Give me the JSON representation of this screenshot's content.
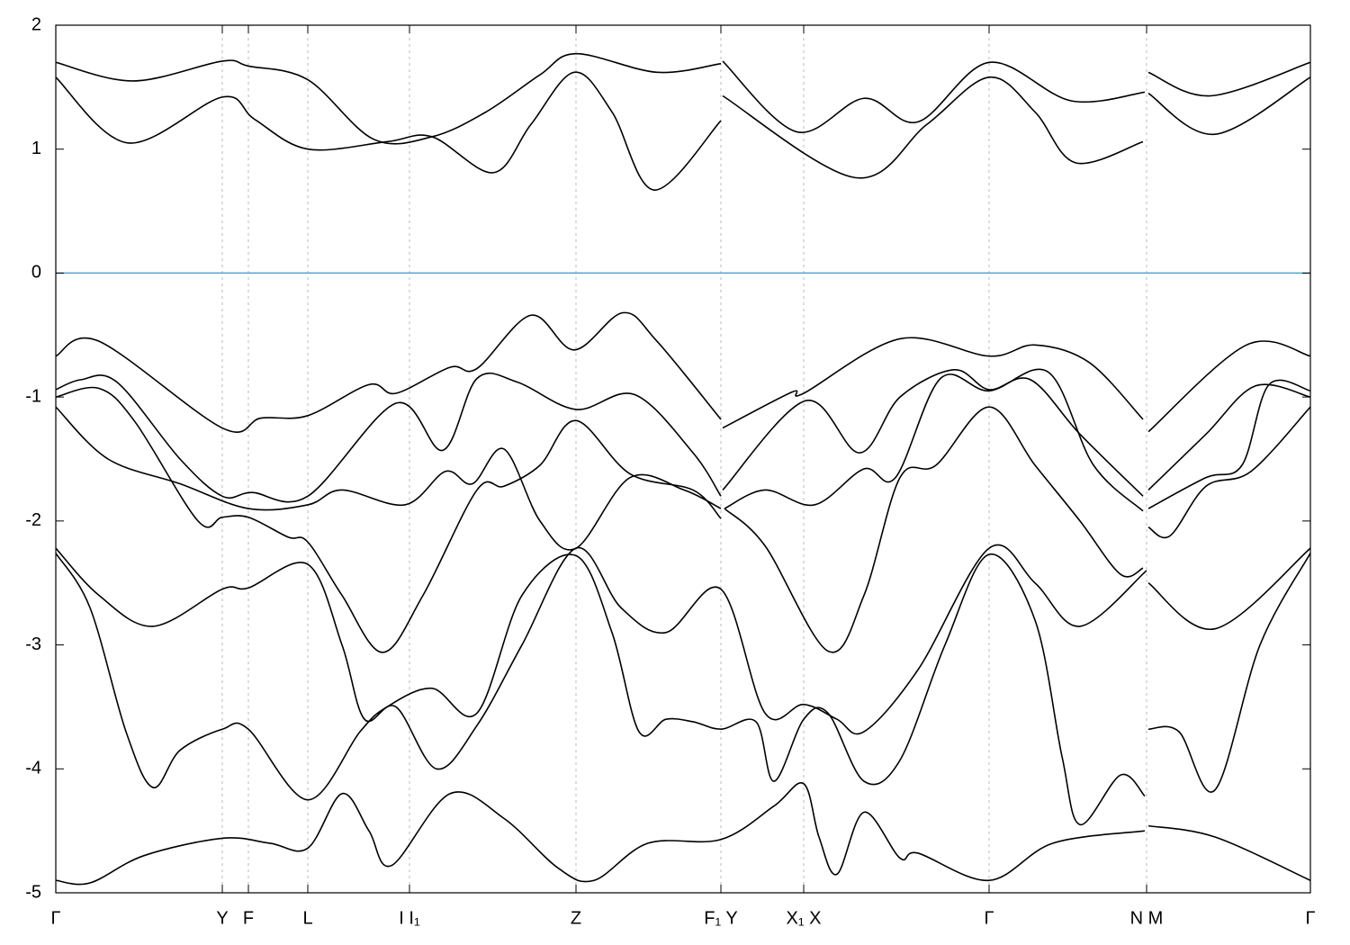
{
  "chart_data": {
    "type": "line",
    "xlim": [
      0,
      1.394
    ],
    "ylim": [
      -5,
      2
    ],
    "yticks": [
      -5,
      -4,
      -3,
      -2,
      -1,
      0,
      1,
      2
    ],
    "xticks": [
      {
        "value": 0,
        "label": "Γ"
      },
      {
        "value": 0.185,
        "label": "Y"
      },
      {
        "value": 0.214,
        "label": "F"
      },
      {
        "value": 0.28,
        "label": "L"
      },
      {
        "value": 0.393,
        "label": "I I₁"
      },
      {
        "value": 0.578,
        "label": "Z"
      },
      {
        "value": 0.739,
        "label": "F₁ Y"
      },
      {
        "value": 0.831,
        "label": "X₁ X"
      },
      {
        "value": 1.037,
        "label": "Γ"
      },
      {
        "value": 1.212,
        "label": "N M"
      },
      {
        "value": 1.394,
        "label": "Γ"
      }
    ],
    "grid": true,
    "hline": {
      "value": 0,
      "color": "#4ea9c4"
    },
    "series": [
      {
        "color": "#000000",
        "x": [
          0,
          0.086,
          0.185,
          0.214,
          0.28,
          0.353,
          0.418,
          0.478,
          0.538,
          0.578,
          0.668,
          0.739,
          0.74,
          0.741,
          0.823,
          0.898,
          0.958,
          1.037,
          1.128,
          1.21,
          1.212,
          1.214,
          1.283,
          1.394
        ],
        "values": [
          1.7,
          1.55,
          1.71,
          1.67,
          1.56,
          1.08,
          1.1,
          1.3,
          1.6,
          1.77,
          1.62,
          1.69,
          null,
          1.71,
          1.14,
          1.41,
          1.22,
          1.7,
          1.39,
          1.46,
          null,
          1.62,
          1.43,
          1.7
        ]
      },
      {
        "color": "#000000",
        "x": [
          0,
          0.08,
          0.185,
          0.221,
          0.28,
          0.368,
          0.418,
          0.486,
          0.528,
          0.576,
          0.618,
          0.665,
          0.739,
          0.74,
          0.741,
          0.888,
          0.968,
          1.037,
          1.088,
          1.133,
          1.208,
          1.212,
          1.214,
          1.288,
          1.394
        ],
        "values": [
          1.58,
          1.05,
          1.42,
          1.24,
          1.0,
          1.06,
          1.1,
          0.81,
          1.2,
          1.62,
          1.3,
          0.67,
          1.23,
          null,
          1.43,
          0.77,
          1.2,
          1.58,
          1.3,
          0.89,
          1.06,
          null,
          1.45,
          1.12,
          1.58
        ]
      },
      {
        "color": "#000000",
        "x": [
          0,
          0.048,
          0.185,
          0.228,
          0.28,
          0.348,
          0.378,
          0.438,
          0.468,
          0.528,
          0.576,
          0.63,
          0.668,
          0.739,
          0.74,
          0.741,
          0.818,
          0.831,
          0.938,
          1.037,
          1.088,
          1.148,
          1.208,
          1.212,
          1.214,
          1.323,
          1.394
        ],
        "values": [
          -0.67,
          -0.55,
          -1.25,
          -1.17,
          -1.15,
          -0.9,
          -0.97,
          -0.76,
          -0.77,
          -0.34,
          -0.62,
          -0.32,
          -0.55,
          -1.18,
          null,
          -1.25,
          -0.96,
          -0.97,
          -0.53,
          -0.67,
          -0.58,
          -0.72,
          -1.18,
          null,
          -1.28,
          -0.58,
          -0.67
        ]
      },
      {
        "color": "#000000",
        "x": [
          0,
          0.028,
          0.068,
          0.138,
          0.185,
          0.218,
          0.28,
          0.378,
          0.43,
          0.468,
          0.513,
          0.578,
          0.643,
          0.708,
          0.739,
          0.74,
          0.741,
          0.833,
          0.893,
          0.938,
          0.998,
          1.037,
          1.083,
          1.138,
          1.208,
          1.212,
          1.214,
          1.278,
          1.333,
          1.394
        ],
        "values": [
          -0.94,
          -0.86,
          -0.88,
          -1.5,
          -1.8,
          -1.77,
          -1.8,
          -1.05,
          -1.43,
          -0.85,
          -0.88,
          -1.1,
          -0.98,
          -1.45,
          -1.8,
          null,
          -1.75,
          -1.03,
          -1.45,
          -1.0,
          -0.78,
          -0.94,
          -0.86,
          -1.3,
          -1.8,
          null,
          -1.75,
          -1.3,
          -0.91,
          -1.0
        ]
      },
      {
        "color": "#000000",
        "x": [
          0,
          0.048,
          0.088,
          0.158,
          0.185,
          0.214,
          0.258,
          0.28,
          0.318,
          0.363,
          0.408,
          0.468,
          0.498,
          0.538,
          0.578,
          0.638,
          0.708,
          0.739,
          0.741,
          0.743,
          0.788,
          0.843,
          0.898,
          0.933,
          0.983,
          1.037,
          1.103,
          1.153,
          1.208,
          1.212,
          1.214,
          1.278,
          1.318,
          1.348,
          1.394
        ],
        "values": [
          -1.0,
          -0.93,
          -1.2,
          -2.0,
          -1.97,
          -1.97,
          -2.13,
          -2.17,
          -2.6,
          -3.06,
          -2.6,
          -1.75,
          -1.72,
          -1.55,
          -1.19,
          -1.62,
          -1.75,
          -1.98,
          null,
          -1.9,
          -1.75,
          -1.87,
          -1.58,
          -1.65,
          -0.85,
          -0.95,
          -0.8,
          -1.55,
          -1.92,
          null,
          -1.9,
          -1.65,
          -1.55,
          -0.9,
          -0.95
        ]
      },
      {
        "color": "#000000",
        "x": [
          0,
          0.058,
          0.138,
          0.214,
          0.28,
          0.318,
          0.388,
          0.433,
          0.463,
          0.498,
          0.538,
          0.578,
          0.638,
          0.698,
          0.739,
          0.741,
          0.743,
          0.788,
          0.858,
          0.898,
          0.938,
          0.978,
          1.037,
          1.088,
          1.138,
          1.183,
          1.208,
          1.212,
          1.214,
          1.238,
          1.278,
          1.328,
          1.394
        ],
        "values": [
          -1.08,
          -1.5,
          -1.7,
          -1.9,
          -1.87,
          -1.75,
          -1.87,
          -1.6,
          -1.7,
          -1.42,
          -2.0,
          -2.22,
          -1.65,
          -1.75,
          -1.9,
          null,
          -1.9,
          -2.2,
          -3.05,
          -2.6,
          -1.65,
          -1.55,
          -1.08,
          -1.55,
          -2.0,
          -2.43,
          -2.38,
          null,
          -2.05,
          -2.12,
          -1.72,
          -1.6,
          -1.08
        ]
      },
      {
        "color": "#000000",
        "x": [
          0,
          0.048,
          0.108,
          0.185,
          0.214,
          0.28,
          0.318,
          0.343,
          0.378,
          0.423,
          0.468,
          0.518,
          0.578,
          0.628,
          0.678,
          0.739,
          0.788,
          0.831,
          0.868,
          0.898,
          0.958,
          1.037,
          1.088,
          1.138,
          1.212,
          1.213,
          1.214,
          1.288,
          1.394
        ],
        "values": [
          -2.22,
          -2.6,
          -2.85,
          -2.55,
          -2.54,
          -2.35,
          -3.0,
          -3.6,
          -3.5,
          -4.0,
          -3.65,
          -3.0,
          -2.22,
          -2.7,
          -2.9,
          -2.55,
          -3.55,
          -3.48,
          -3.6,
          -3.7,
          -3.2,
          -2.22,
          -2.5,
          -2.85,
          -2.4,
          null,
          -2.5,
          -2.87,
          -2.22
        ]
      },
      {
        "color": "#000000",
        "x": [
          0,
          0.038,
          0.078,
          0.108,
          0.138,
          0.185,
          0.214,
          0.28,
          0.338,
          0.368,
          0.418,
          0.468,
          0.518,
          0.578,
          0.618,
          0.648,
          0.678,
          0.708,
          0.739,
          0.778,
          0.798,
          0.831,
          0.858,
          0.898,
          0.938,
          0.988,
          1.037,
          1.088,
          1.118,
          1.138,
          1.183,
          1.21,
          1.212,
          1.214,
          1.248,
          1.288,
          1.338,
          1.394
        ],
        "values": [
          -2.26,
          -2.7,
          -3.7,
          -4.15,
          -3.85,
          -3.68,
          -3.68,
          -4.25,
          -3.7,
          -3.5,
          -3.35,
          -3.55,
          -2.6,
          -2.28,
          -2.9,
          -3.7,
          -3.6,
          -3.62,
          -3.68,
          -3.62,
          -4.1,
          -3.6,
          -3.55,
          -4.1,
          -3.93,
          -3.0,
          -2.27,
          -2.8,
          -3.9,
          -4.45,
          -4.05,
          -4.22,
          null,
          -3.68,
          -3.7,
          -4.17,
          -3.0,
          -2.26
        ]
      },
      {
        "color": "#000000",
        "x": [
          0,
          0.038,
          0.098,
          0.185,
          0.238,
          0.28,
          0.318,
          0.348,
          0.373,
          0.438,
          0.498,
          0.558,
          0.598,
          0.658,
          0.739,
          0.798,
          0.831,
          0.848,
          0.868,
          0.898,
          0.938,
          0.958,
          1.037,
          1.108,
          1.21,
          1.212,
          1.214,
          1.288,
          1.394
        ],
        "values": [
          -4.9,
          -4.92,
          -4.7,
          -4.56,
          -4.6,
          -4.64,
          -4.2,
          -4.5,
          -4.78,
          -4.2,
          -4.4,
          -4.8,
          -4.9,
          -4.6,
          -4.57,
          -4.3,
          -4.12,
          -4.55,
          -4.85,
          -4.35,
          -4.72,
          -4.68,
          -4.9,
          -4.6,
          -4.5,
          null,
          -4.46,
          -4.55,
          -4.9
        ]
      }
    ]
  }
}
